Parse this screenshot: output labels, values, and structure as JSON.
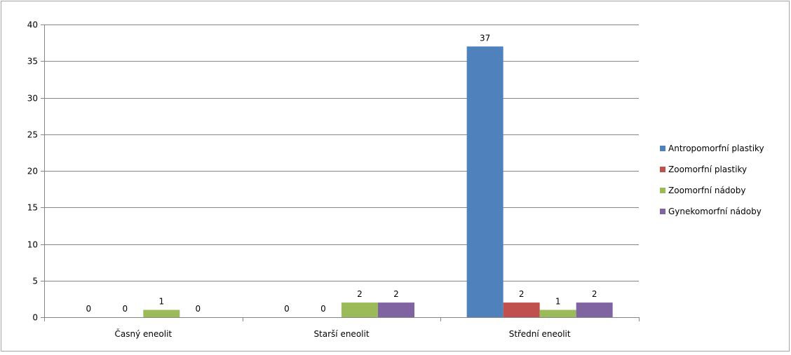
{
  "chart_data": {
    "type": "bar",
    "categories": [
      "Časný eneolit",
      "Starší eneolit",
      "Střední eneolit"
    ],
    "series": [
      {
        "name": "Antropomorfní plastiky",
        "color": "#4f81bd",
        "values": [
          0,
          0,
          37
        ]
      },
      {
        "name": "Zoomorfní plastiky",
        "color": "#c0504d",
        "values": [
          0,
          0,
          2
        ]
      },
      {
        "name": "Zoomorfní nádoby",
        "color": "#9bbb59",
        "values": [
          1,
          2,
          1
        ]
      },
      {
        "name": "Gynekomorfní nádoby",
        "color": "#8064a2",
        "values": [
          0,
          2,
          2
        ]
      }
    ],
    "ylim": [
      0,
      40
    ],
    "yticks": [
      0,
      5,
      10,
      15,
      20,
      25,
      30,
      35,
      40
    ],
    "grid": true,
    "legend": "right",
    "data_labels": true
  }
}
